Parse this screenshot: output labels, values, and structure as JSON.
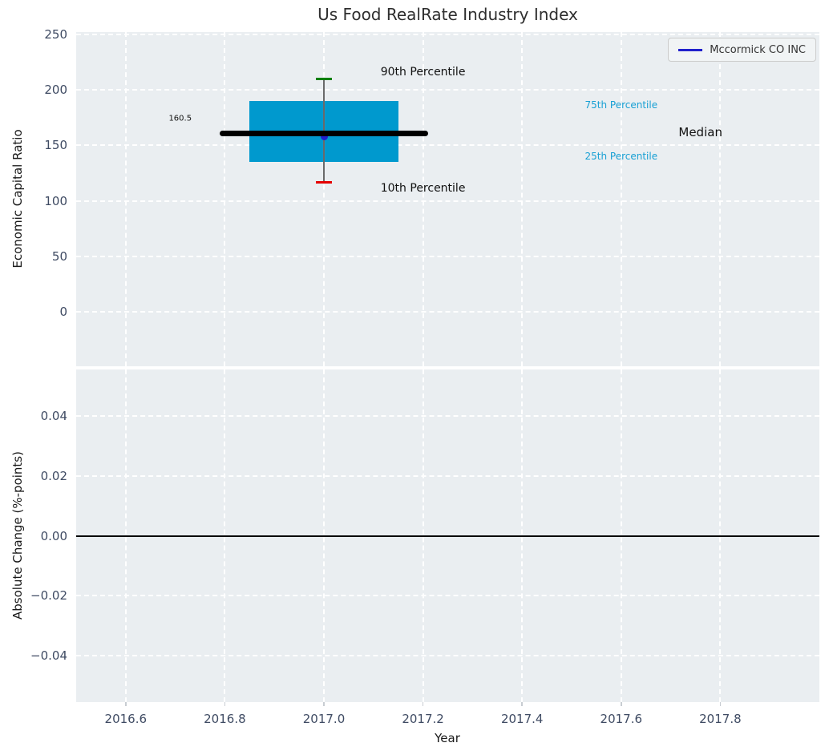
{
  "colors": {
    "panel_bg": "#eaeef1",
    "grid": "#ffffff",
    "tick_label": "#3f4b63",
    "title": "#2e2e2e",
    "box_fill": "#0099ce",
    "median_line": "#000000",
    "whisker_line": "#6a6a6a",
    "p90_cap": "#008000",
    "p10_cap": "#e50000",
    "company": "#2020cc",
    "percentile_text": "#18a0d4",
    "annotation_text": "#111111",
    "zero_line": "#000000",
    "tick_mark": "#c8cdd2"
  },
  "chart_data": {
    "type": "box",
    "title": "Us Food RealRate Industry Index",
    "xlabel": "Year",
    "xlim": [
      2016.5,
      2018.0
    ],
    "xticks": [
      2016.6,
      2016.8,
      2017.0,
      2017.2,
      2017.4,
      2017.6,
      2017.8
    ],
    "xtick_labels": [
      "2016.6",
      "2016.8",
      "2017.0",
      "2017.2",
      "2017.4",
      "2017.6",
      "2017.8"
    ],
    "grid": "white-dashed",
    "panels": [
      {
        "ylabel": "Economic Capital Ratio",
        "ylim": [
          -49,
          252
        ],
        "yticks": [
          250,
          200,
          150,
          100,
          50,
          0
        ],
        "ytick_labels": [
          "250",
          "200",
          "150",
          "100",
          "50",
          "0"
        ],
        "boxplot": {
          "x": 2017.0,
          "p10": 117,
          "q1": 135,
          "median": 160.5,
          "q3": 190,
          "p90": 210,
          "box_x_left": 2016.85,
          "box_x_right": 2017.15,
          "median_x_left": 2016.79,
          "median_x_right": 2017.21,
          "cap_half_width": 0.016
        },
        "company_point": {
          "name": "Mccormick CO INC",
          "x": 2017.0,
          "value": 158
        },
        "legend": {
          "label": "Mccormick CO INC",
          "position": "upper right"
        },
        "annotations": [
          {
            "text": "90th Percentile",
            "x": 2017.2,
            "y": 216,
            "color": "#111111",
            "size": 14
          },
          {
            "text": "10th Percentile",
            "x": 2017.2,
            "y": 111,
            "color": "#111111",
            "size": 14
          },
          {
            "text": "75th Percentile",
            "x": 2017.6,
            "y": 186,
            "color": "#18a0d4",
            "size": 12
          },
          {
            "text": "25th Percentile",
            "x": 2017.6,
            "y": 140,
            "color": "#18a0d4",
            "size": 12
          },
          {
            "text": "Median",
            "x": 2017.76,
            "y": 162,
            "color": "#111111",
            "size": 15
          },
          {
            "text": "160.5",
            "x": 2016.71,
            "y": 174,
            "color": "#111111",
            "size": 10
          }
        ]
      },
      {
        "ylabel": "Absolute Change (%-points)",
        "ylim": [
          -0.0555,
          0.0555
        ],
        "yticks": [
          0.04,
          0.02,
          0.0,
          -0.02,
          -0.04
        ],
        "ytick_labels": [
          "0.04",
          "0.02",
          "0.00",
          "−0.02",
          "−0.04"
        ],
        "zero_line": 0.0
      }
    ]
  }
}
